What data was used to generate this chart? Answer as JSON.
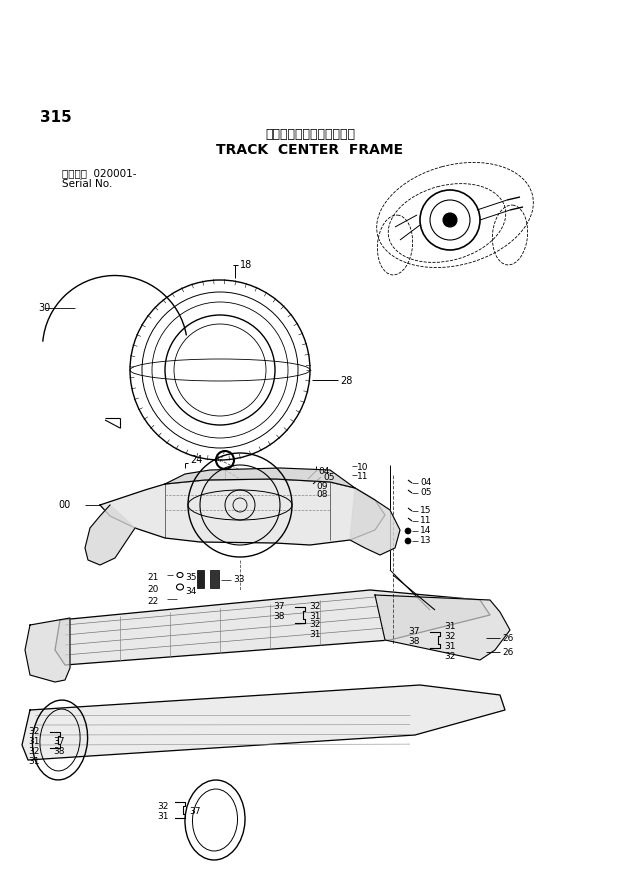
{
  "title_japanese": "トラックセンターフレーム",
  "title_english": "TRACK  CENTER  FRAME",
  "page_number": "315",
  "serial_label": "適用号機  020001-",
  "serial_label2": "Serial No.",
  "bg_color": "#ffffff",
  "line_color": "#000000",
  "fig_width": 6.2,
  "fig_height": 8.73,
  "dpi": 100
}
